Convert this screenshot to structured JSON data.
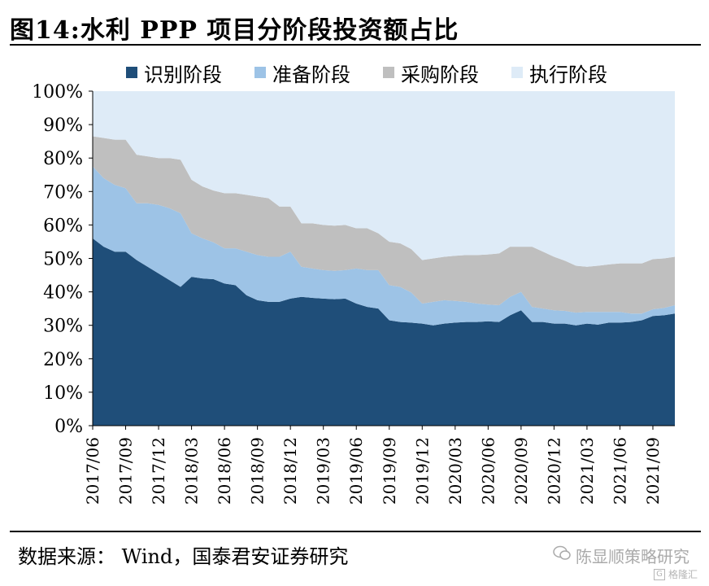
{
  "title": "图14:水利 PPP 项目分阶段投资额占比",
  "source": "数据来源： Wind，国泰君安证券研究",
  "watermark": "陈显顺策略研究",
  "watermark_sub": "格隆汇",
  "colors": {
    "series": [
      "#1f4e79",
      "#9dc3e6",
      "#bfbfbf",
      "#deebf7"
    ],
    "accent": "#000000"
  },
  "chart_data": {
    "type": "area",
    "stacked": true,
    "ylim": [
      0,
      100
    ],
    "yticks": [
      "0%",
      "10%",
      "20%",
      "30%",
      "40%",
      "50%",
      "60%",
      "70%",
      "80%",
      "90%",
      "100%"
    ],
    "xtick_labels": [
      "2017/06",
      "2017/09",
      "2017/12",
      "2018/03",
      "2018/06",
      "2018/09",
      "2018/12",
      "2019/03",
      "2019/06",
      "2019/09",
      "2019/12",
      "2020/03",
      "2020/06",
      "2020/09",
      "2020/12",
      "2021/03",
      "2021/06",
      "2021/09"
    ],
    "x": [
      "2017/06",
      "2017/07",
      "2017/08",
      "2017/09",
      "2017/10",
      "2017/11",
      "2017/12",
      "2018/01",
      "2018/02",
      "2018/03",
      "2018/04",
      "2018/05",
      "2018/06",
      "2018/07",
      "2018/08",
      "2018/09",
      "2018/10",
      "2018/11",
      "2018/12",
      "2019/01",
      "2019/02",
      "2019/03",
      "2019/04",
      "2019/05",
      "2019/06",
      "2019/07",
      "2019/08",
      "2019/09",
      "2019/10",
      "2019/11",
      "2019/12",
      "2020/01",
      "2020/02",
      "2020/03",
      "2020/04",
      "2020/05",
      "2020/06",
      "2020/07",
      "2020/08",
      "2020/09",
      "2020/10",
      "2020/11",
      "2020/12",
      "2021/01",
      "2021/02",
      "2021/03",
      "2021/04",
      "2021/05",
      "2021/06",
      "2021/07",
      "2021/08",
      "2021/09",
      "2021/10",
      "2021/11"
    ],
    "series": [
      {
        "name": "识别阶段",
        "values": [
          56,
          53.5,
          52,
          52,
          49.5,
          47.5,
          45.5,
          43.5,
          41.5,
          44.5,
          44,
          43.8,
          42.5,
          42,
          39,
          37.5,
          37,
          37,
          38,
          38.5,
          38.2,
          38,
          37.8,
          38,
          36.5,
          35.5,
          35,
          31.5,
          31,
          30.8,
          30.5,
          30,
          30.5,
          30.8,
          31,
          31,
          31.2,
          31,
          33,
          34.5,
          31,
          31,
          30.5,
          30.5,
          30,
          30.5,
          30.2,
          30.8,
          30.8,
          31,
          31.5,
          32.8,
          33,
          33.5
        ]
      },
      {
        "name": "准备阶段",
        "values": [
          21.5,
          20.5,
          20,
          19,
          17,
          19,
          20.5,
          21.5,
          22,
          13,
          12,
          11,
          10.5,
          11,
          13,
          13.5,
          13.5,
          13.5,
          14,
          9,
          8.8,
          8.5,
          8.5,
          8.5,
          10.5,
          11,
          11.5,
          10.5,
          10.5,
          9,
          6,
          7,
          7,
          6.5,
          6,
          5.5,
          5,
          5,
          5.5,
          5.5,
          4.5,
          4,
          4,
          3.8,
          3.8,
          3.5,
          3.8,
          3.2,
          3.2,
          2.5,
          2,
          2,
          2.2,
          2.5
        ]
      },
      {
        "name": "采购阶段",
        "values": [
          9,
          12,
          13.5,
          14.5,
          14.5,
          14,
          14,
          15,
          16,
          16,
          15.5,
          15.5,
          16.5,
          16.5,
          17,
          17.5,
          17.5,
          15,
          13.5,
          13,
          13.5,
          13.5,
          13.5,
          13.5,
          12,
          12.5,
          11,
          13,
          13,
          13,
          13,
          13,
          13,
          13.5,
          14,
          14.5,
          15,
          15.5,
          15,
          13.5,
          18,
          17,
          16,
          15,
          14,
          13.5,
          13.8,
          14.2,
          14.5,
          15,
          15,
          15,
          14.8,
          14.5
        ]
      },
      {
        "name": "执行阶段",
        "values": [
          13.5,
          14,
          14.5,
          14.5,
          19,
          19.5,
          20,
          20,
          20.5,
          26.5,
          28.5,
          29.7,
          30.5,
          30.5,
          31,
          31.5,
          32,
          34.5,
          34.5,
          39.5,
          39.5,
          40,
          40.2,
          40,
          41,
          41,
          42.5,
          45,
          45.5,
          47.2,
          50.5,
          50,
          49.5,
          49.2,
          49,
          49,
          48.8,
          48.5,
          46.5,
          46.5,
          46.5,
          48,
          49.5,
          50.7,
          52.2,
          52.5,
          52.2,
          51.8,
          51.5,
          51.5,
          51.5,
          50.2,
          50,
          49.5
        ]
      }
    ]
  }
}
